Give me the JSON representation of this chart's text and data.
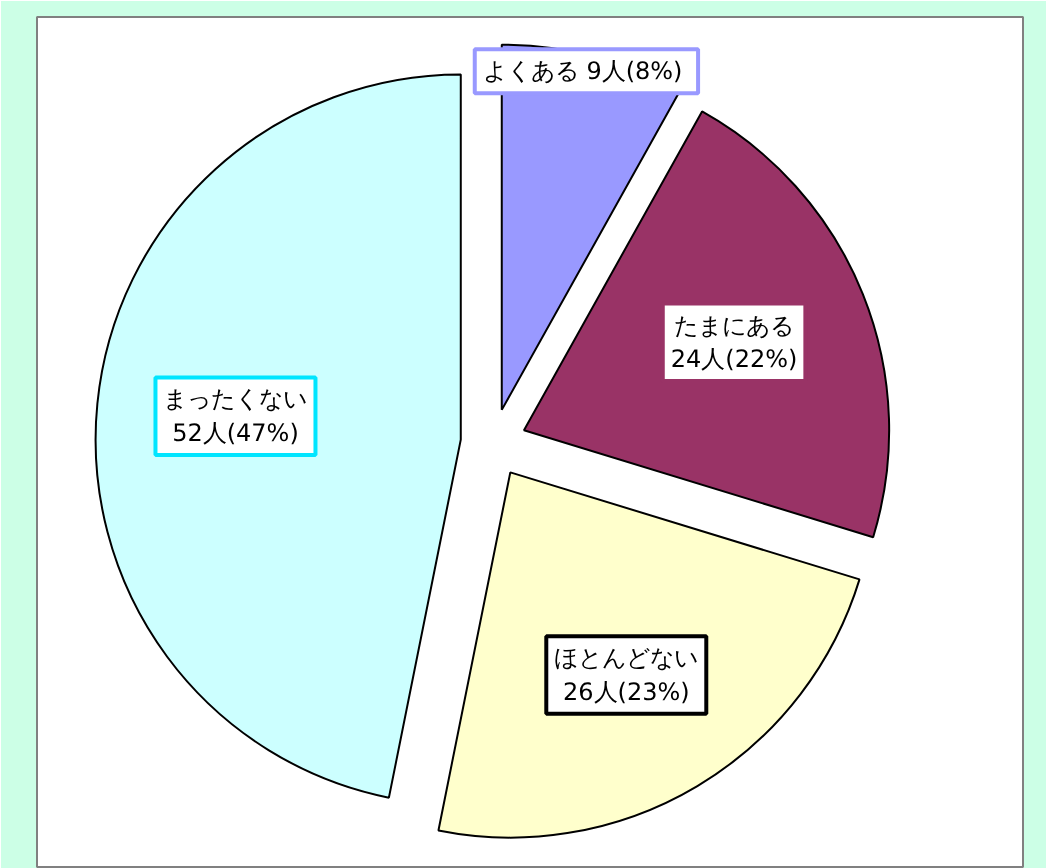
{
  "chart_data": {
    "type": "pie",
    "categories": [
      "よくある",
      "たまにある",
      "ほとんどない",
      "まったくない"
    ],
    "values": [
      9,
      24,
      26,
      52
    ],
    "value_labels": [
      "9人(8%)",
      "24人(22%)",
      "26人(23%)",
      "52人(47%)"
    ],
    "colors": [
      "#9999ff",
      "#993366",
      "#ffffcc",
      "#ccffff"
    ]
  }
}
